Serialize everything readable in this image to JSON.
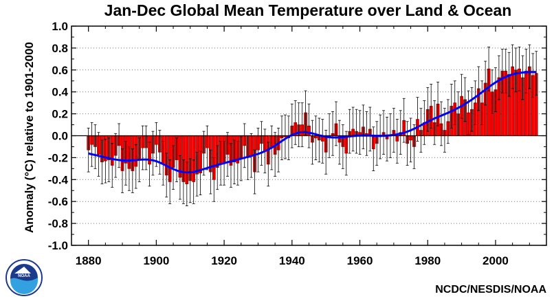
{
  "chart_data": {
    "type": "bar",
    "title": "Jan-Dec Global Mean Temperature over Land & Ocean",
    "ylabel": "Anomaly (°C) relative to 1901-2000",
    "xlabel": "",
    "credit": "NCDC/NESDIS/NOAA",
    "logo": "noaa-logo",
    "xlim": [
      1875,
      2015
    ],
    "ylim": [
      -1.0,
      1.0
    ],
    "grid": "horizontal-dotted",
    "x_ticks": [
      "1880",
      "1900",
      "1920",
      "1940",
      "1960",
      "1980",
      "2000"
    ],
    "y_ticks": [
      "1.0",
      "0.8",
      "0.6",
      "0.4",
      "0.2",
      "0.0",
      "-0.2",
      "-0.4",
      "-0.6",
      "-0.8",
      "-1.0"
    ],
    "colors": {
      "positive": "#ff0000",
      "negative": "#ff0000",
      "bar_edge": "#8b0000",
      "smooth": "#0000ff",
      "error": "#000000"
    },
    "error_bar": 0.2,
    "start_year": 1880,
    "values": [
      -0.13,
      -0.08,
      -0.1,
      -0.17,
      -0.24,
      -0.23,
      -0.22,
      -0.27,
      -0.18,
      -0.09,
      -0.32,
      -0.25,
      -0.3,
      -0.32,
      -0.28,
      -0.22,
      -0.11,
      -0.11,
      -0.26,
      -0.16,
      -0.08,
      -0.15,
      -0.25,
      -0.36,
      -0.42,
      -0.29,
      -0.22,
      -0.38,
      -0.42,
      -0.44,
      -0.41,
      -0.42,
      -0.35,
      -0.34,
      -0.16,
      -0.11,
      -0.33,
      -0.4,
      -0.29,
      -0.25,
      -0.25,
      -0.17,
      -0.27,
      -0.24,
      -0.25,
      -0.21,
      -0.09,
      -0.2,
      -0.18,
      -0.33,
      -0.13,
      -0.07,
      -0.14,
      -0.26,
      -0.11,
      -0.17,
      -0.13,
      -0.02,
      -0.01,
      -0.02,
      0.09,
      0.12,
      0.1,
      0.1,
      0.21,
      0.09,
      -0.06,
      -0.02,
      -0.04,
      -0.05,
      -0.15,
      0.0,
      0.02,
      0.11,
      -0.06,
      -0.1,
      -0.16,
      0.04,
      0.06,
      0.04,
      0.03,
      0.08,
      0.02,
      0.06,
      -0.12,
      -0.07,
      -0.01,
      0.03,
      -0.03,
      0.0,
      0.05,
      -0.05,
      0.03,
      0.14,
      -0.07,
      -0.04,
      -0.1,
      0.15,
      0.05,
      0.12,
      0.24,
      0.27,
      0.12,
      0.29,
      0.11,
      0.05,
      0.13,
      0.27,
      0.3,
      0.2,
      0.36,
      0.33,
      0.21,
      0.24,
      0.3,
      0.43,
      0.3,
      0.48,
      0.61,
      0.4,
      0.42,
      0.53,
      0.59,
      0.59,
      0.56,
      0.63,
      0.6,
      0.61,
      0.53,
      0.59,
      0.63,
      0.55,
      0.57
    ]
  }
}
